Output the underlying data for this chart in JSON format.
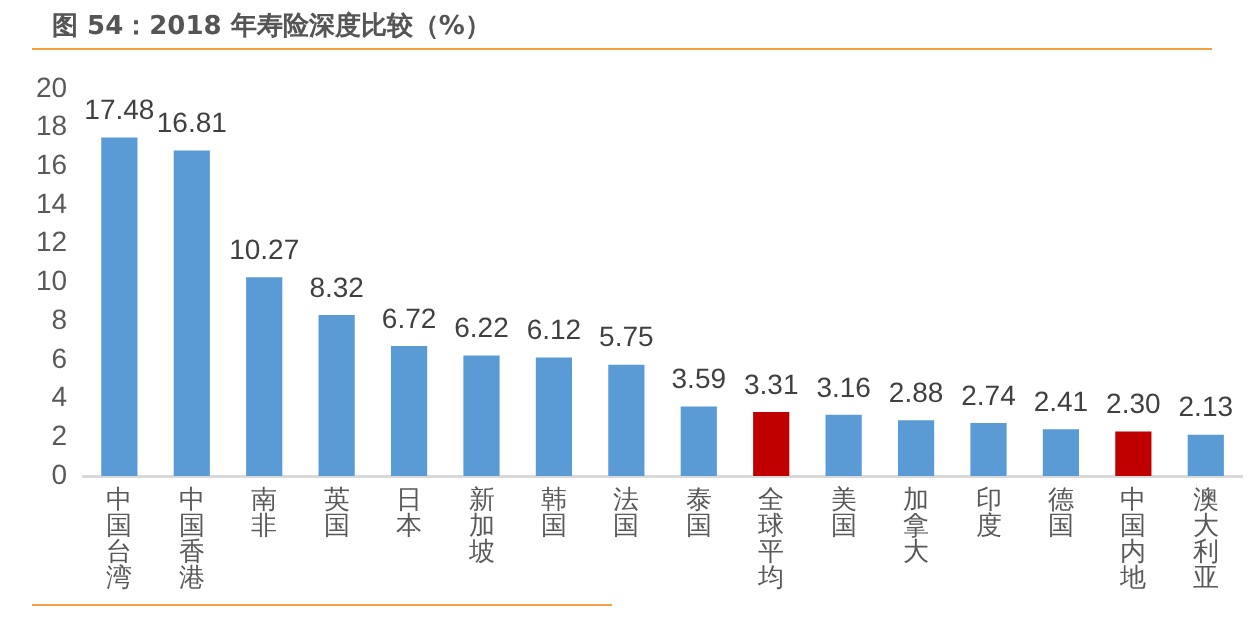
{
  "chart_data": {
    "type": "bar",
    "title": "图 54：2018 年寿险深度比较（%）",
    "categories": [
      "中国台湾",
      "中国香港",
      "南非",
      "英国",
      "日本",
      "新加坡",
      "韩国",
      "法国",
      "泰国",
      "全球平均",
      "美国",
      "加拿大",
      "印度",
      "德国",
      "中国内地",
      "澳大利亚"
    ],
    "values": [
      17.48,
      16.81,
      10.27,
      8.32,
      6.72,
      6.22,
      6.12,
      5.75,
      3.59,
      3.31,
      3.16,
      2.88,
      2.74,
      2.41,
      2.3,
      2.13
    ],
    "value_labels": [
      "17.48",
      "16.81",
      "10.27",
      "8.32",
      "6.72",
      "6.22",
      "6.12",
      "5.75",
      "3.59",
      "3.31",
      "3.16",
      "2.88",
      "2.74",
      "2.41",
      "2.30",
      "2.13"
    ],
    "colors": [
      "#5b9bd5",
      "#5b9bd5",
      "#5b9bd5",
      "#5b9bd5",
      "#5b9bd5",
      "#5b9bd5",
      "#5b9bd5",
      "#5b9bd5",
      "#5b9bd5",
      "#c00000",
      "#5b9bd5",
      "#5b9bd5",
      "#5b9bd5",
      "#5b9bd5",
      "#c00000",
      "#5b9bd5"
    ],
    "ylim": [
      0,
      20
    ],
    "yticks": [
      0,
      2,
      4,
      6,
      8,
      10,
      12,
      14,
      16,
      18,
      20
    ],
    "grid": false,
    "legend": false
  }
}
